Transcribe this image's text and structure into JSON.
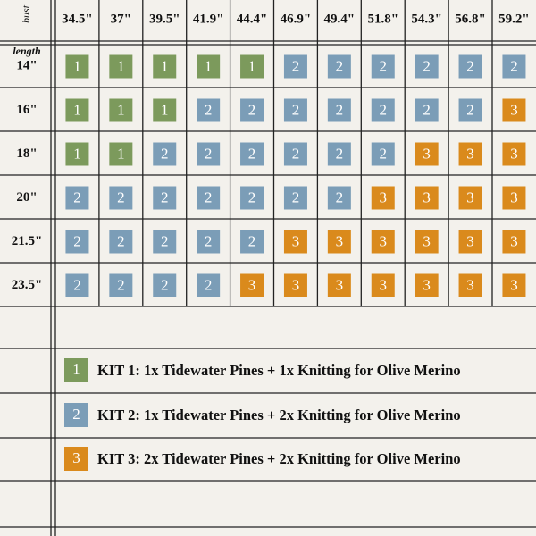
{
  "corner": {
    "bust": "bust",
    "length": "length"
  },
  "columns": [
    "34.5\"",
    "37\"",
    "39.5\"",
    "41.9\"",
    "44.4\"",
    "46.9\"",
    "49.4\"",
    "51.8\"",
    "54.3\"",
    "56.8\"",
    "59.2\""
  ],
  "rows": [
    {
      "length": "14\"",
      "cells": [
        "1",
        "1",
        "1",
        "1",
        "1",
        "2",
        "2",
        "2",
        "2",
        "2",
        "2"
      ]
    },
    {
      "length": "16\"",
      "cells": [
        "1",
        "1",
        "1",
        "2",
        "2",
        "2",
        "2",
        "2",
        "2",
        "2",
        "3"
      ]
    },
    {
      "length": "18\"",
      "cells": [
        "1",
        "1",
        "2",
        "2",
        "2",
        "2",
        "2",
        "2",
        "3",
        "3",
        "3"
      ]
    },
    {
      "length": "20\"",
      "cells": [
        "2",
        "2",
        "2",
        "2",
        "2",
        "2",
        "2",
        "3",
        "3",
        "3",
        "3"
      ]
    },
    {
      "length": "21.5\"",
      "cells": [
        "2",
        "2",
        "2",
        "2",
        "2",
        "3",
        "3",
        "3",
        "3",
        "3",
        "3"
      ]
    },
    {
      "length": "23.5\"",
      "cells": [
        "2",
        "2",
        "2",
        "2",
        "3",
        "3",
        "3",
        "3",
        "3",
        "3",
        "3"
      ]
    }
  ],
  "kits": [
    {
      "number": "1",
      "color": "#7c9a5c",
      "label": "KIT 1: 1x Tidewater Pines + 1x Knitting for Olive Merino"
    },
    {
      "number": "2",
      "color": "#7b9db7",
      "label": "KIT 2: 1x Tidewater Pines + 2x Knitting for Olive Merino"
    },
    {
      "number": "3",
      "color": "#da8a1c",
      "label": "KIT 3: 2x Tidewater Pines + 2x Knitting for Olive Merino"
    }
  ]
}
